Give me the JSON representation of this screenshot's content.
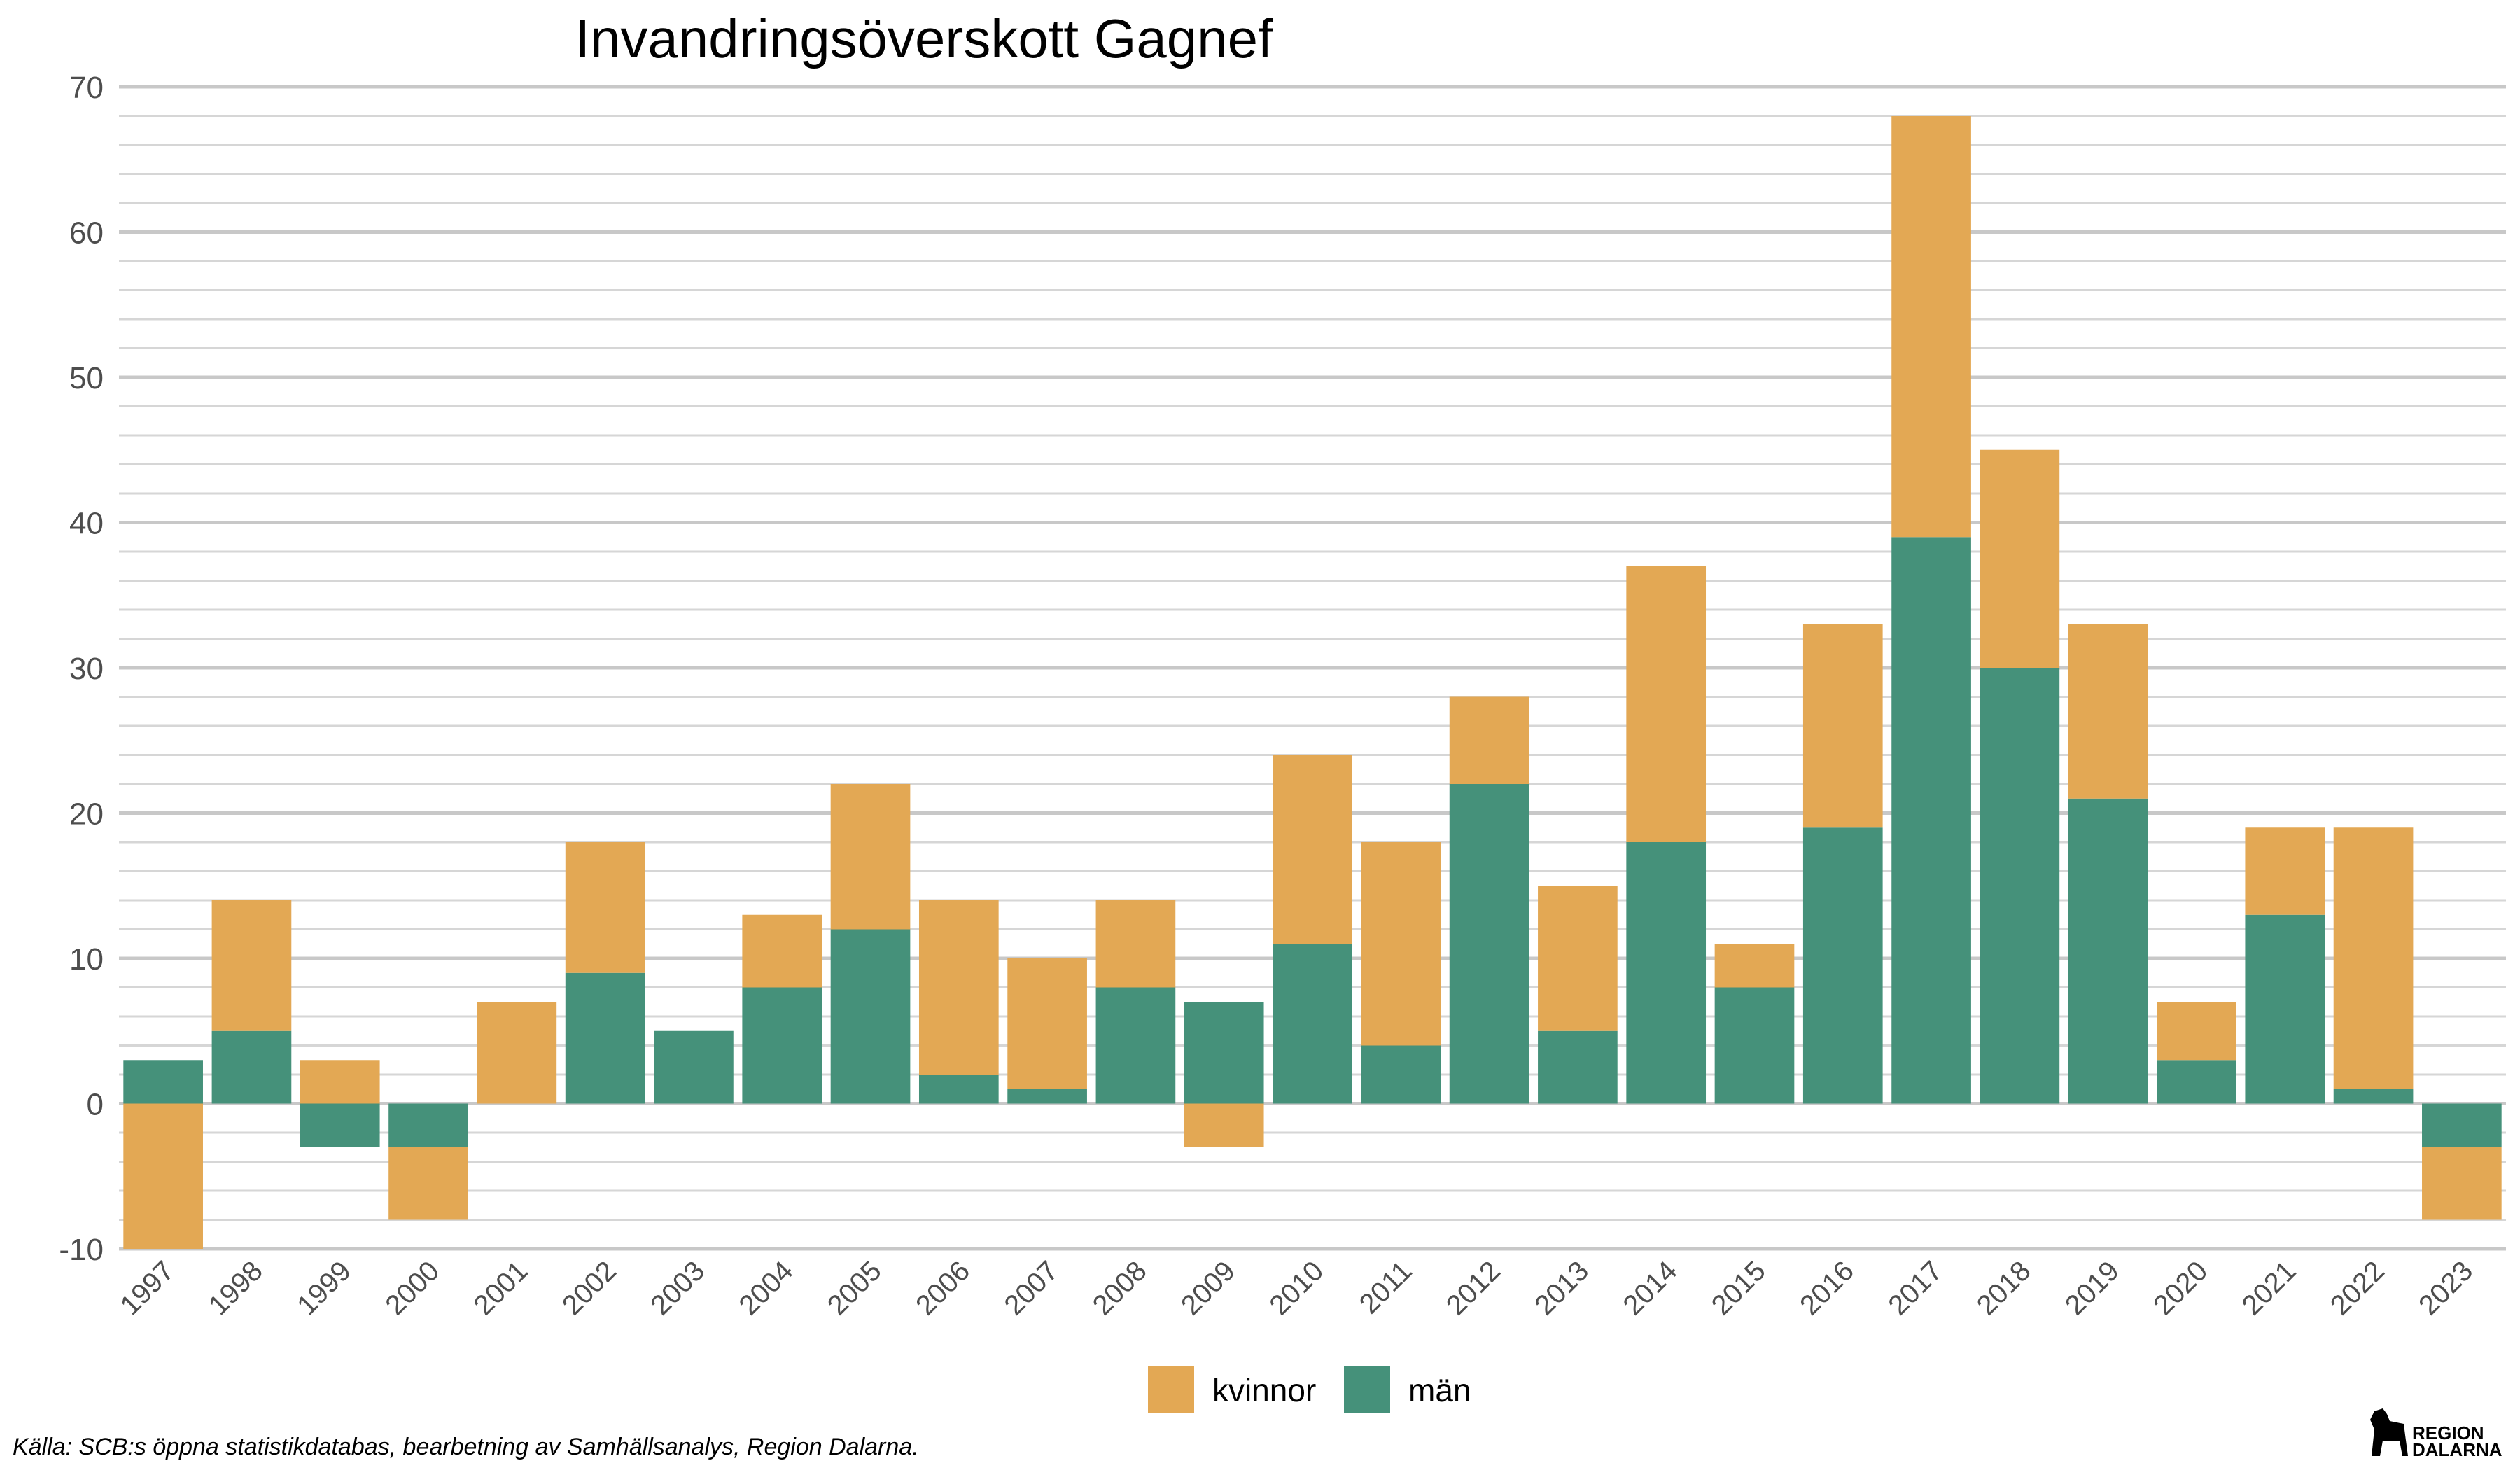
{
  "chart_data": {
    "type": "bar",
    "stacked": true,
    "title": "Invandringsöverskott Gagnef",
    "xlabel": "",
    "ylabel": "",
    "ylim": [
      -10,
      70
    ],
    "yticks": [
      -10,
      0,
      10,
      20,
      30,
      40,
      50,
      60,
      70
    ],
    "grid": true,
    "legend_position": "bottom",
    "categories": [
      "1997",
      "1998",
      "1999",
      "2000",
      "2001",
      "2002",
      "2003",
      "2004",
      "2005",
      "2006",
      "2007",
      "2008",
      "2009",
      "2010",
      "2011",
      "2012",
      "2013",
      "2014",
      "2015",
      "2016",
      "2017",
      "2018",
      "2019",
      "2020",
      "2021",
      "2022",
      "2023"
    ],
    "series": [
      {
        "name": "kvinnor",
        "color": "#E3A854",
        "values": [
          -10,
          9,
          3,
          -5,
          7,
          9,
          0,
          5,
          10,
          12,
          9,
          6,
          -3,
          13,
          14,
          6,
          10,
          19,
          3,
          14,
          29,
          15,
          12,
          4,
          6,
          18,
          -5
        ]
      },
      {
        "name": "män",
        "color": "#45917A",
        "values": [
          3,
          5,
          -3,
          -3,
          0,
          9,
          5,
          8,
          12,
          2,
          1,
          8,
          7,
          11,
          4,
          22,
          5,
          18,
          8,
          19,
          39,
          30,
          21,
          3,
          13,
          1,
          -3
        ]
      }
    ],
    "caption": "Källa: SCB:s öppna statistikdatabas, bearbetning av Samhällsanalys, Region Dalarna.",
    "logo_text": [
      "REGION",
      "DALARNA"
    ]
  }
}
